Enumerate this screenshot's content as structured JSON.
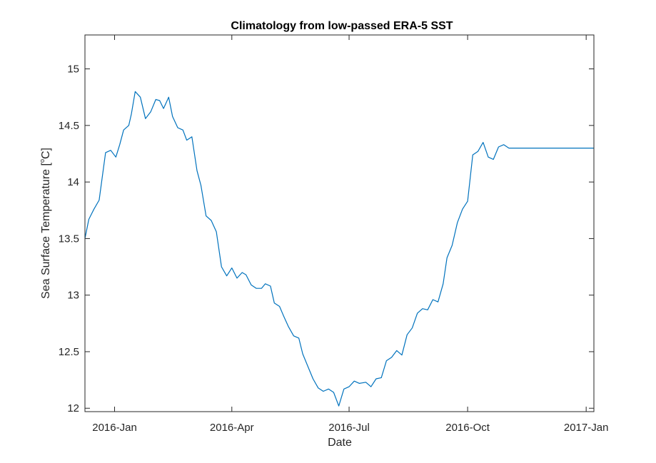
{
  "chart_data": {
    "type": "line",
    "title": "Climatology from low-passed ERA-5 SST",
    "xlabel": "Date",
    "ylabel": "Sea Surface Temperature [",
    "ylabel_degree": "o",
    "ylabel_unit": "C]",
    "x_axis": "date",
    "xlim": [
      "2015-12-09",
      "2017-01-07"
    ],
    "ylim": [
      11.97,
      15.3
    ],
    "grid": false,
    "x_ticks": [
      {
        "date": "2016-01-01",
        "label": "2016-Jan"
      },
      {
        "date": "2016-04-01",
        "label": "2016-Apr"
      },
      {
        "date": "2016-07-01",
        "label": "2016-Jul"
      },
      {
        "date": "2016-10-01",
        "label": "2016-Oct"
      },
      {
        "date": "2017-01-01",
        "label": "2017-Jan"
      }
    ],
    "y_ticks": [
      {
        "value": 12,
        "label": "12"
      },
      {
        "value": 12.5,
        "label": "12.5"
      },
      {
        "value": 13,
        "label": "13"
      },
      {
        "value": 13.5,
        "label": "13.5"
      },
      {
        "value": 14,
        "label": "14"
      },
      {
        "value": 14.5,
        "label": "14.5"
      },
      {
        "value": 15,
        "label": "15"
      }
    ],
    "colors": {
      "line": "#0072BD",
      "axes": "#262626"
    },
    "series": [
      {
        "x": [
          "2015-12-09",
          "2015-12-12",
          "2015-12-16",
          "2015-12-20",
          "2015-12-25",
          "2015-12-29",
          "2016-01-02",
          "2016-01-05",
          "2016-01-08",
          "2016-01-12",
          "2016-01-14",
          "2016-01-17",
          "2016-01-21",
          "2016-01-25",
          "2016-01-29",
          "2016-02-02",
          "2016-02-05",
          "2016-02-08",
          "2016-02-12",
          "2016-02-15",
          "2016-02-19",
          "2016-02-23",
          "2016-02-26",
          "2016-03-01",
          "2016-03-05",
          "2016-03-08",
          "2016-03-12",
          "2016-03-16",
          "2016-03-20",
          "2016-03-24",
          "2016-03-28",
          "2016-04-01",
          "2016-04-05",
          "2016-04-09",
          "2016-04-12",
          "2016-04-16",
          "2016-04-20",
          "2016-04-24",
          "2016-04-27",
          "2016-05-01",
          "2016-05-04",
          "2016-05-08",
          "2016-05-11",
          "2016-05-15",
          "2016-05-19",
          "2016-05-23",
          "2016-05-26",
          "2016-05-30",
          "2016-06-03",
          "2016-06-07",
          "2016-06-11",
          "2016-06-15",
          "2016-06-19",
          "2016-06-23",
          "2016-06-27",
          "2016-07-01",
          "2016-07-05",
          "2016-07-09",
          "2016-07-14",
          "2016-07-18",
          "2016-07-22",
          "2016-07-26",
          "2016-07-30",
          "2016-08-03",
          "2016-08-07",
          "2016-08-11",
          "2016-08-15",
          "2016-08-19",
          "2016-08-23",
          "2016-08-27",
          "2016-08-31",
          "2016-09-04",
          "2016-09-08",
          "2016-09-12",
          "2016-09-15",
          "2016-09-19",
          "2016-09-23",
          "2016-09-27",
          "2016-10-01",
          "2016-10-05",
          "2016-10-09",
          "2016-10-13",
          "2016-10-17",
          "2016-10-21",
          "2016-10-25",
          "2016-10-29",
          "2016-11-02",
          "2016-11-06",
          "2016-11-10",
          "2016-11-14",
          "2016-11-18",
          "2016-11-22",
          "2016-11-26",
          "2016-11-30",
          "2016-12-04",
          "2016-12-08",
          "2016-12-12",
          "2016-12-16",
          "2016-12-20",
          "2016-12-24",
          "2016-12-27",
          "2016-12-29",
          "2016-12-31",
          "2017-01-02",
          "2017-01-04",
          "2017-01-07"
        ],
        "values": [
          13.5,
          13.67,
          13.76,
          13.84,
          14.26,
          14.28,
          14.22,
          14.33,
          14.46,
          14.5,
          14.6,
          14.8,
          14.75,
          14.56,
          14.62,
          14.73,
          14.72,
          14.65,
          14.75,
          14.58,
          14.48,
          14.46,
          14.37,
          14.4,
          14.1,
          13.97,
          13.7,
          13.66,
          13.56,
          13.25,
          13.17,
          13.24,
          13.15,
          13.2,
          13.18,
          13.09,
          13.06,
          13.06,
          13.1,
          13.08,
          12.93,
          12.9,
          12.82,
          12.72,
          12.64,
          12.62,
          12.48,
          12.37,
          12.26,
          12.18,
          12.15,
          12.17,
          12.14,
          12.02,
          12.17,
          12.19,
          12.24,
          12.22,
          12.23,
          12.19,
          12.26,
          12.27,
          12.42,
          12.45,
          12.51,
          12.47,
          12.65,
          12.71,
          12.84,
          12.88,
          12.87,
          12.96,
          12.94,
          13.1,
          13.33,
          13.44,
          13.64,
          13.76,
          13.83,
          14.24,
          14.27,
          14.35,
          14.22,
          14.2,
          14.31,
          14.33,
          14.3,
          14.3,
          14.3,
          14.3,
          14.3,
          14.3,
          14.3,
          14.3,
          14.3,
          14.3,
          14.3,
          14.3,
          14.3,
          14.3,
          14.3,
          14.3,
          14.3,
          14.3,
          14.3,
          14.3
        ]
      }
    ]
  }
}
